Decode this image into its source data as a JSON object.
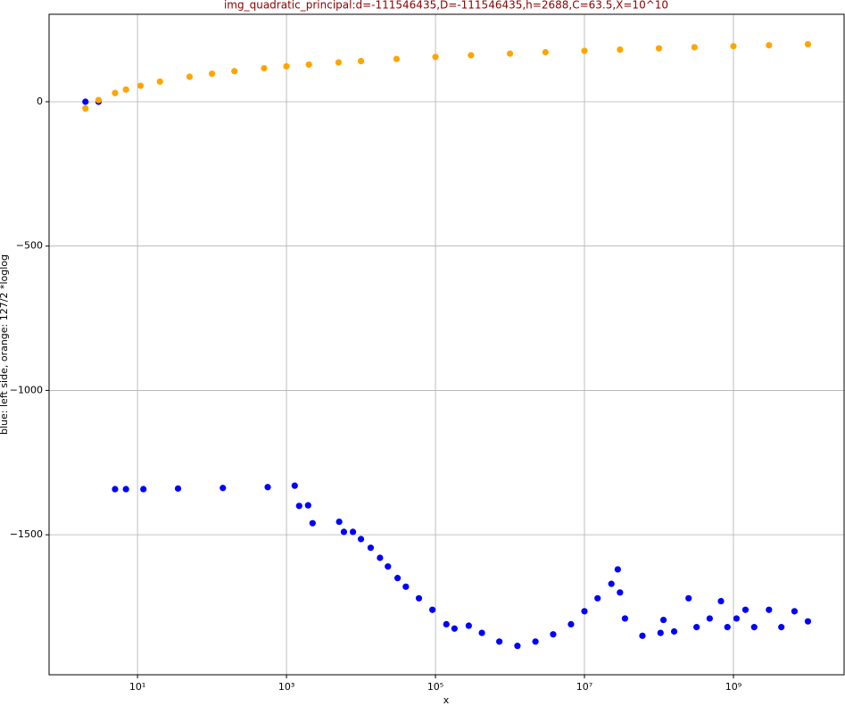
{
  "chart_data": {
    "type": "scatter",
    "title": "img_quadratic_principal:d=-111546435,D=-111546435,h=2688,C=63.5,X=10^10",
    "xlabel": "x",
    "ylabel": "blue: left side, orange: 127/2 *loglog",
    "xscale": "log",
    "grid": true,
    "xlim": [
      0.65,
      30600000000
    ],
    "ylim": [
      -1985,
      303
    ],
    "xticks": [
      {
        "value": 10,
        "label": "10¹"
      },
      {
        "value": 1000,
        "label": "10³"
      },
      {
        "value": 100000,
        "label": "10⁵"
      },
      {
        "value": 10000000,
        "label": "10⁷"
      },
      {
        "value": 1000000000,
        "label": "10⁹"
      }
    ],
    "yticks": [
      {
        "value": -1500,
        "label": "−1500"
      },
      {
        "value": -1000,
        "label": "−1000"
      },
      {
        "value": -500,
        "label": "−500"
      },
      0
    ],
    "series": [
      {
        "color": "#0000ff",
        "x": [
          2,
          3,
          5,
          7,
          12,
          35,
          140,
          560,
          1290,
          1480,
          1950,
          2240,
          5100,
          5900,
          7800,
          10000,
          13500,
          18000,
          23000,
          31000,
          40000,
          60000,
          91000,
          140000,
          180000,
          280000,
          420000,
          720000,
          1260000,
          2200000,
          3800000,
          6600000,
          10000000,
          15000000,
          23000000,
          28000000,
          30000000,
          35000000,
          60000000,
          105000000,
          115000000,
          160000000,
          250000000,
          320000000,
          480000000,
          680000000,
          830000000,
          1100000000,
          1450000000,
          1900000000,
          3000000000,
          4400000000,
          6600000000,
          10000000000
        ],
        "values": [
          0,
          0,
          -1342,
          -1342,
          -1342,
          -1340,
          -1338,
          -1335,
          -1330,
          -1400,
          -1398,
          -1460,
          -1455,
          -1490,
          -1490,
          -1515,
          -1545,
          -1580,
          -1610,
          -1650,
          -1680,
          -1720,
          -1760,
          -1810,
          -1825,
          -1815,
          -1840,
          -1870,
          -1885,
          -1870,
          -1845,
          -1810,
          -1765,
          -1720,
          -1670,
          -1620,
          -1700,
          -1790,
          -1850,
          -1840,
          -1795,
          -1835,
          -1720,
          -1820,
          -1790,
          -1730,
          -1820,
          -1790,
          -1760,
          -1820,
          -1760,
          -1820,
          -1765,
          -1800
        ]
      },
      {
        "color": "#ffa500",
        "x": [
          2,
          3,
          5,
          7,
          11,
          20,
          50,
          100,
          200,
          500,
          1000,
          2000,
          5000,
          10000,
          30000,
          100000,
          300000,
          1000000,
          3000000,
          10000000,
          30000000,
          100000000,
          300000000,
          1000000000,
          3000000000,
          10000000000
        ],
        "values": [
          -23.3,
          6.0,
          30.2,
          42.3,
          55.5,
          69.7,
          86.6,
          97.0,
          105.9,
          116.0,
          122.7,
          128.8,
          136.0,
          141.0,
          148.2,
          155.2,
          161.0,
          166.7,
          171.6,
          176.5,
          180.7,
          185.0,
          188.7,
          192.5,
          195.8,
          199.2
        ]
      }
    ]
  }
}
